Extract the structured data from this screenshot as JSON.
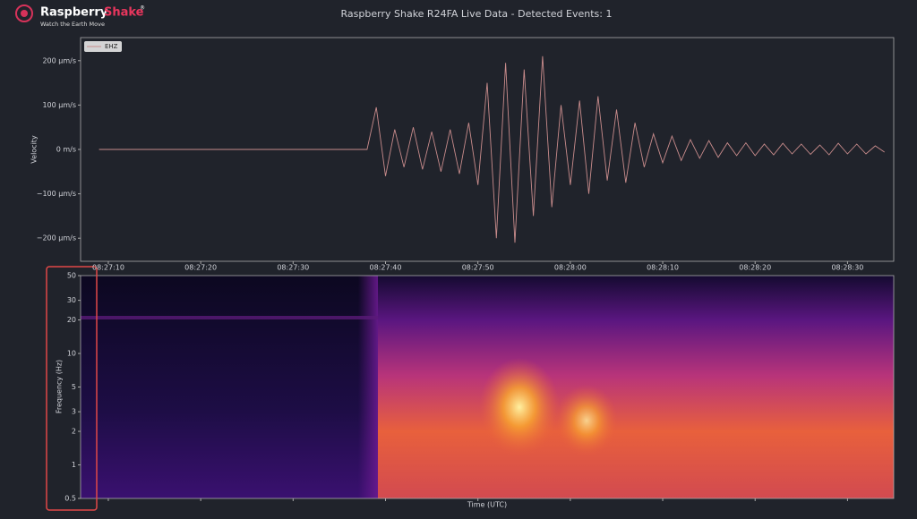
{
  "header": {
    "brand_main": "Raspberry",
    "brand_accent": "Shake",
    "brand_mark": "®",
    "tagline": "Watch the Earth Move"
  },
  "chart_data": [
    {
      "type": "line",
      "title": "Raspberry Shake R24FA Live Data - Detected Events: 1",
      "ylabel": "Velocity",
      "x": [
        "08:27:09",
        "08:27:10",
        "08:27:11",
        "08:27:12",
        "08:27:13",
        "08:27:14",
        "08:27:15",
        "08:27:16",
        "08:27:17",
        "08:27:18",
        "08:27:19",
        "08:27:20",
        "08:27:21",
        "08:27:22",
        "08:27:23",
        "08:27:24",
        "08:27:25",
        "08:27:26",
        "08:27:27",
        "08:27:28",
        "08:27:29",
        "08:27:30",
        "08:27:31",
        "08:27:32",
        "08:27:33",
        "08:27:34",
        "08:27:35",
        "08:27:36",
        "08:27:37",
        "08:27:38",
        "08:27:39",
        "08:27:40",
        "08:27:41",
        "08:27:42",
        "08:27:43",
        "08:27:44",
        "08:27:45",
        "08:27:46",
        "08:27:47",
        "08:27:48",
        "08:27:49",
        "08:27:50",
        "08:27:51",
        "08:27:52",
        "08:27:53",
        "08:27:54",
        "08:27:55",
        "08:27:56",
        "08:27:57",
        "08:27:58",
        "08:27:59",
        "08:28:00",
        "08:28:01",
        "08:28:02",
        "08:28:03",
        "08:28:04",
        "08:28:05",
        "08:28:06",
        "08:28:07",
        "08:28:08",
        "08:28:09",
        "08:28:10",
        "08:28:11",
        "08:28:12",
        "08:28:13",
        "08:28:14",
        "08:28:15",
        "08:28:16",
        "08:28:17",
        "08:28:18",
        "08:28:19",
        "08:28:20",
        "08:28:21",
        "08:28:22",
        "08:28:23",
        "08:28:24",
        "08:28:25",
        "08:28:26",
        "08:28:27",
        "08:28:28",
        "08:28:29",
        "08:28:30",
        "08:28:31",
        "08:28:32",
        "08:28:33",
        "08:28:34"
      ],
      "series": [
        {
          "name": "EHZ",
          "color": "#c98c8c",
          "values": [
            0,
            0,
            0,
            0,
            0,
            0,
            0,
            0,
            0,
            0,
            0,
            0,
            0,
            0,
            0,
            0,
            0,
            0,
            0,
            0,
            0,
            0,
            0,
            0,
            0,
            0,
            0,
            0,
            0,
            0,
            95,
            -60,
            45,
            -40,
            50,
            -45,
            40,
            -50,
            45,
            -55,
            60,
            -80,
            150,
            -200,
            195,
            -210,
            180,
            -150,
            210,
            -130,
            100,
            -80,
            110,
            -100,
            120,
            -70,
            90,
            -75,
            60,
            -40,
            35,
            -30,
            30,
            -25,
            22,
            -20,
            20,
            -18,
            15,
            -14,
            15,
            -14,
            12,
            -12,
            14,
            -10,
            12,
            -11,
            10,
            -12,
            14,
            -10,
            12,
            -10,
            8,
            -6
          ]
        }
      ],
      "xlim": [
        "08:27:07",
        "08:28:35"
      ],
      "xticks": [
        "08:27:10",
        "08:27:20",
        "08:27:30",
        "08:27:40",
        "08:27:50",
        "08:28:00",
        "08:28:10",
        "08:28:20",
        "08:28:30"
      ],
      "ylim": [
        -252,
        252
      ],
      "yticks": [
        {
          "value": -200,
          "label": "−200 µm/s"
        },
        {
          "value": -100,
          "label": "−100 µm/s"
        },
        {
          "value": 0,
          "label": "0 m/s"
        },
        {
          "value": 100,
          "label": "100 µm/s"
        },
        {
          "value": 200,
          "label": "200 µm/s"
        }
      ],
      "legend": "upper left"
    },
    {
      "type": "spectrogram",
      "ylabel": "Frequency (Hz)",
      "xlabel": "Time (UTC)",
      "log_y": true,
      "xlim": [
        "08:27:07",
        "08:28:35"
      ],
      "xticks": [
        "08:27:10",
        "08:27:20",
        "08:27:30",
        "08:27:40",
        "08:27:50",
        "08:28:00",
        "08:28:10",
        "08:28:20",
        "08:28:30"
      ],
      "ylim": [
        0.5,
        50
      ],
      "yticks": [
        0.5,
        1,
        2,
        3,
        5,
        10,
        20,
        30,
        50
      ]
    }
  ]
}
